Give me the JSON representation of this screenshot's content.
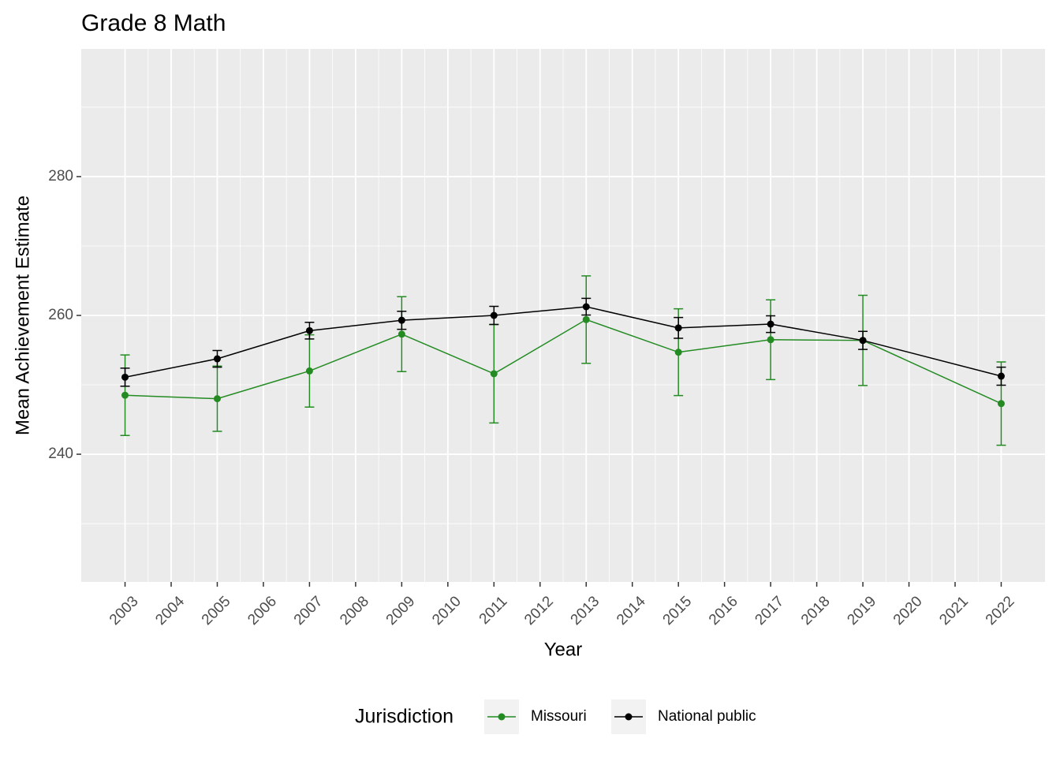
{
  "chart_data": {
    "type": "line",
    "title": "Grade 8 Math",
    "x_label": "Year",
    "y_label": "Mean Achievement Estimate",
    "x": [
      2003,
      2005,
      2007,
      2009,
      2011,
      2013,
      2015,
      2017,
      2019,
      2022
    ],
    "series": [
      {
        "name": "Missouri",
        "color": "#238b22",
        "values": [
          248.5,
          248.0,
          252.0,
          257.3,
          251.6,
          259.4,
          254.7,
          256.5,
          256.4,
          247.3
        ],
        "errors": [
          5.8,
          4.7,
          5.2,
          5.4,
          7.1,
          6.3,
          6.25,
          5.75,
          6.5,
          6.0
        ]
      },
      {
        "name": "National public",
        "color": "#000000",
        "values": [
          251.1,
          253.75,
          257.8,
          259.3,
          260.0,
          261.25,
          258.2,
          258.75,
          256.4,
          251.25
        ],
        "errors": [
          1.3,
          1.2,
          1.2,
          1.3,
          1.3,
          1.2,
          1.5,
          1.2,
          1.3,
          1.3
        ]
      }
    ],
    "xlim": [
      2002.05,
      2022.95
    ],
    "xticks": [
      2003,
      2004,
      2005,
      2006,
      2007,
      2008,
      2009,
      2010,
      2011,
      2012,
      2013,
      2014,
      2015,
      2016,
      2017,
      2018,
      2019,
      2020,
      2021,
      2022
    ],
    "ylim": [
      221.6,
      298.4
    ],
    "yticks": [
      240,
      260,
      280
    ],
    "y_minor_grid": [
      230,
      250,
      270,
      290
    ],
    "grid": true,
    "legend_title": "Jurisdiction",
    "legend_position": "bottom"
  }
}
